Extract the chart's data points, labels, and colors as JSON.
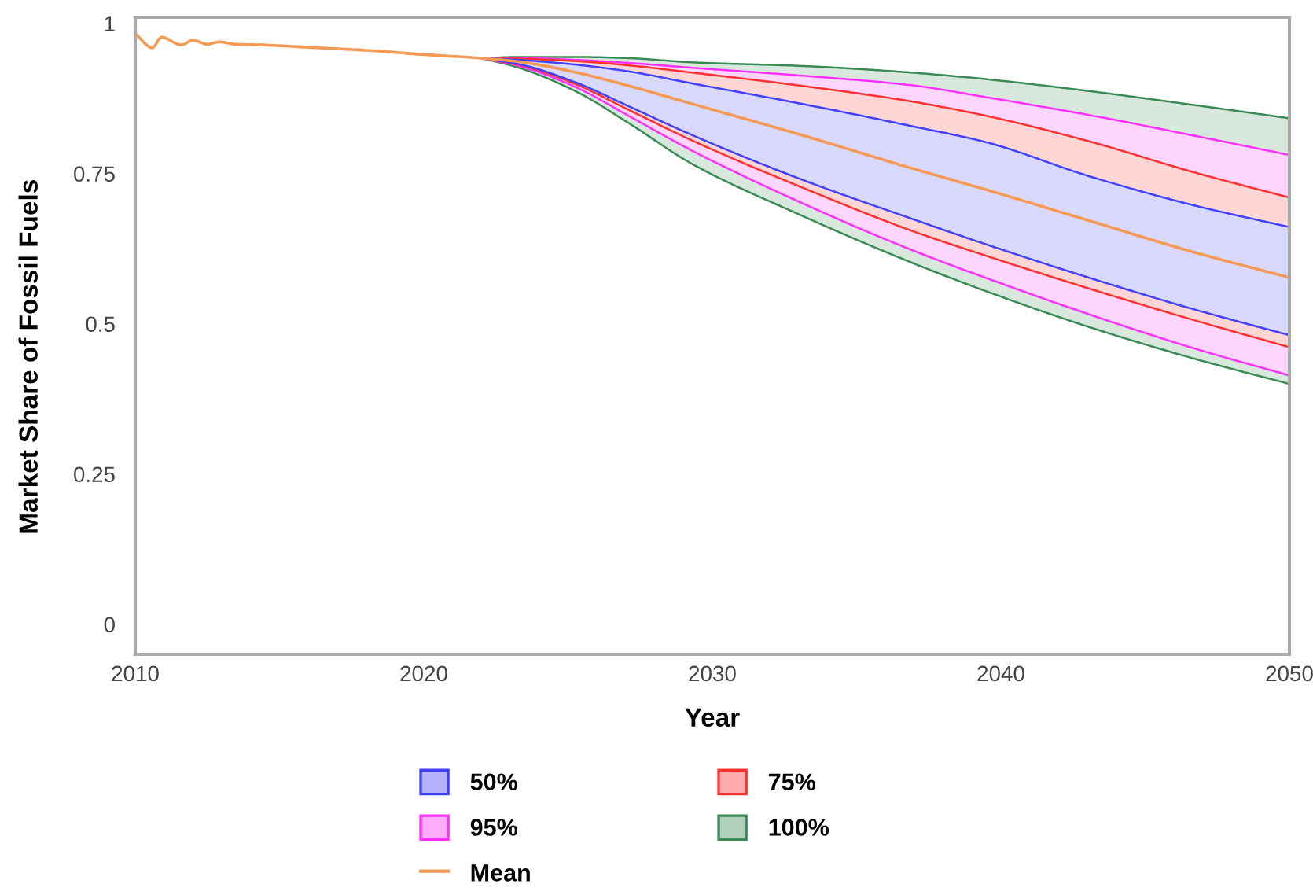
{
  "chart_data": {
    "type": "line",
    "xlabel": "Year",
    "ylabel": "Market Share of Fossil Fuels",
    "xlim": [
      2010,
      2050
    ],
    "ylim": [
      -0.05,
      1.01
    ],
    "xticks": [
      2010,
      2020,
      2030,
      2040,
      2050
    ],
    "yticks": [
      0,
      0.25,
      0.5,
      0.75,
      1
    ],
    "legend": "bottom",
    "series": [
      {
        "name": "50%",
        "type": "area",
        "color": "#4040ff",
        "x": [
          2022,
          2023.3,
          2025.3,
          2027.1,
          2029.3,
          2033.1,
          2036.9,
          2039.5,
          2043.1,
          2046.7,
          2050
        ],
        "values": [
          null,
          null,
          null,
          null,
          null,
          null,
          null,
          null,
          null,
          null,
          null
        ],
        "lower": [
          0.942,
          0.932,
          0.901,
          0.862,
          0.814,
          0.74,
          0.675,
          0.632,
          0.576,
          0.524,
          0.481
        ],
        "upper": [
          0.942,
          0.939,
          0.931,
          0.92,
          0.9,
          0.866,
          0.829,
          0.802,
          0.745,
          0.697,
          0.661
        ]
      },
      {
        "name": "75%",
        "type": "area",
        "color": "#ff3030",
        "x": [
          2022,
          2023.3,
          2025.3,
          2027.1,
          2029.3,
          2033.1,
          2036.9,
          2039.5,
          2043.1,
          2046.7,
          2050
        ],
        "values": [
          null,
          null,
          null,
          null,
          null,
          null,
          null,
          null,
          null,
          null,
          null
        ],
        "lower": [
          0.942,
          0.931,
          0.898,
          0.856,
          0.805,
          0.727,
          0.655,
          0.613,
          0.558,
          0.506,
          0.461
        ],
        "upper": [
          0.942,
          0.941,
          0.937,
          0.93,
          0.918,
          0.896,
          0.87,
          0.846,
          0.803,
          0.752,
          0.71
        ]
      },
      {
        "name": "95%",
        "type": "area",
        "color": "#ff30ff",
        "x": [
          2022,
          2023.3,
          2025.3,
          2027.1,
          2029.3,
          2033.1,
          2036.9,
          2039.5,
          2043.1,
          2046.7,
          2050
        ],
        "values": [
          null,
          null,
          null,
          null,
          null,
          null,
          null,
          null,
          null,
          null,
          null
        ],
        "lower": [
          0.942,
          0.929,
          0.893,
          0.846,
          0.788,
          0.701,
          0.623,
          0.576,
          0.515,
          0.459,
          0.414
        ],
        "upper": [
          0.942,
          0.942,
          0.939,
          0.934,
          0.926,
          0.913,
          0.897,
          0.877,
          0.847,
          0.813,
          0.781
        ]
      },
      {
        "name": "100%",
        "type": "area",
        "color": "#3a8a55",
        "x": [
          2022,
          2023.3,
          2025.3,
          2027.1,
          2029.3,
          2033.1,
          2036.9,
          2039.5,
          2043.1,
          2046.7,
          2050
        ],
        "values": [
          null,
          null,
          null,
          null,
          null,
          null,
          null,
          null,
          null,
          null,
          null
        ],
        "lower": [
          0.942,
          0.926,
          0.886,
          0.834,
          0.766,
          0.68,
          0.602,
          0.554,
          0.494,
          0.442,
          0.4
        ],
        "upper": [
          0.942,
          0.944,
          0.944,
          0.942,
          0.935,
          0.929,
          0.918,
          0.907,
          0.887,
          0.864,
          0.842
        ]
      },
      {
        "name": "Mean",
        "color": "#f59a55",
        "x": [
          2010,
          2010.6,
          2010.9,
          2011.6,
          2012,
          2012.5,
          2012.9,
          2013.5,
          2014.4,
          2016,
          2018,
          2020,
          2022,
          2023.3,
          2025.3,
          2027.1,
          2029.3,
          2033.1,
          2036.9,
          2039.5,
          2043.1,
          2046.7,
          2050
        ],
        "values": [
          0.983,
          0.959,
          0.977,
          0.964,
          0.972,
          0.965,
          0.969,
          0.965,
          0.964,
          0.96,
          0.955,
          0.948,
          0.942,
          0.936,
          0.918,
          0.896,
          0.866,
          0.814,
          0.759,
          0.723,
          0.671,
          0.619,
          0.577
        ]
      }
    ]
  }
}
